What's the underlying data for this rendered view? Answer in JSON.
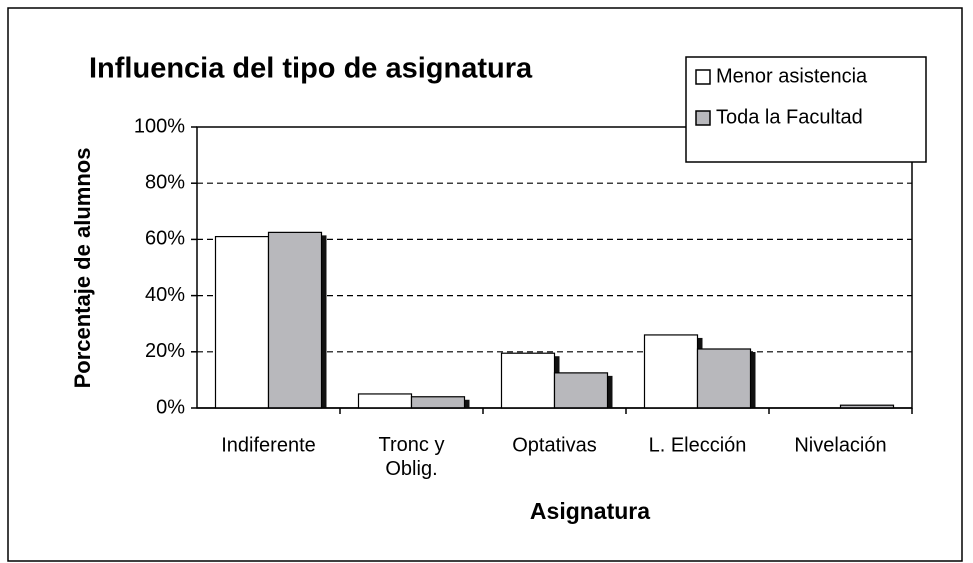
{
  "chart_data": {
    "type": "bar",
    "title": "Influencia del tipo de asignatura",
    "x_label": "Asignatura",
    "y_label": "Porcentaje de alumnos",
    "categories": [
      "Indiferente",
      "Tronc y\nOblig.",
      "Optativas",
      "L. Elección",
      "Nivelación"
    ],
    "series": [
      {
        "name": "Menor asistencia",
        "color": "#ffffff",
        "values": [
          61,
          5,
          19.5,
          26,
          0
        ]
      },
      {
        "name": "Toda la Facultad",
        "color": "#b8b8bc",
        "values": [
          62.5,
          4,
          12.5,
          21,
          1
        ]
      }
    ],
    "ylim": [
      0,
      100
    ],
    "yticks": [
      {
        "value": 0,
        "label": "0%"
      },
      {
        "value": 20,
        "label": "20%"
      },
      {
        "value": 40,
        "label": "40%"
      },
      {
        "value": 60,
        "label": "60%"
      },
      {
        "value": 80,
        "label": "80%"
      },
      {
        "value": 100,
        "label": "100%"
      }
    ],
    "grid": true,
    "legend": "top-right"
  }
}
